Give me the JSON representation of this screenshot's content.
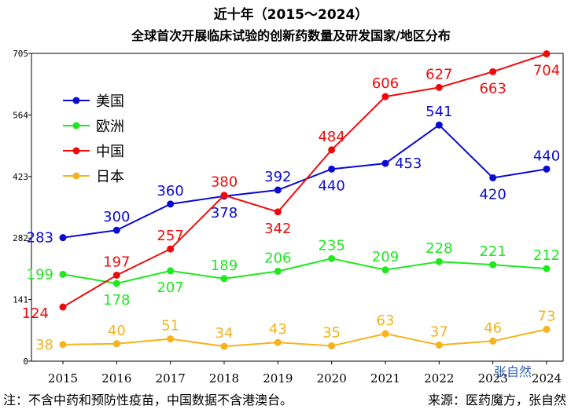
{
  "title_line1": "近十年（2015～2024）",
  "title_line2": "全球首次开展临床试验的创新药数量及研发国家/地区分布",
  "note": "注：不含中药和预防性疫苗，中国数据不含港澳台。",
  "source": "来源：医药魔方，张自然",
  "watermark": "张自然",
  "chart_data": {
    "type": "line",
    "x": [
      "2015",
      "2016",
      "2017",
      "2018",
      "2019",
      "2020",
      "2021",
      "2022",
      "2023",
      "2024"
    ],
    "ylim": [
      0,
      705
    ],
    "yticks": [
      0,
      141,
      282,
      423,
      564,
      705
    ],
    "grid": false,
    "legend_position": "top-left",
    "series": [
      {
        "name": "美国",
        "color": "#0a0ad0",
        "values": [
          283,
          300,
          360,
          378,
          392,
          440,
          453,
          541,
          420,
          440
        ],
        "label_pos": [
          "left",
          "above",
          "above",
          "below",
          "above",
          "below",
          "right",
          "above",
          "below",
          "above"
        ]
      },
      {
        "name": "欧洲",
        "color": "#1ee81e",
        "values": [
          199,
          178,
          207,
          189,
          206,
          235,
          209,
          228,
          221,
          212
        ],
        "label_pos": [
          "left",
          "below",
          "below",
          "above",
          "above",
          "above",
          "above",
          "above",
          "above",
          "above"
        ]
      },
      {
        "name": "中国",
        "color": "#ee0a0a",
        "values": [
          124,
          197,
          257,
          380,
          342,
          484,
          606,
          627,
          663,
          704
        ],
        "label_pos": [
          "below-left",
          "above",
          "above",
          "above",
          "below",
          "above",
          "above",
          "above",
          "below",
          "below"
        ]
      },
      {
        "name": "日本",
        "color": "#f6b21a",
        "values": [
          38,
          40,
          51,
          34,
          43,
          35,
          63,
          37,
          46,
          73
        ],
        "label_pos": [
          "left",
          "above",
          "above",
          "above",
          "above",
          "above",
          "above",
          "above",
          "above",
          "above"
        ]
      }
    ]
  }
}
